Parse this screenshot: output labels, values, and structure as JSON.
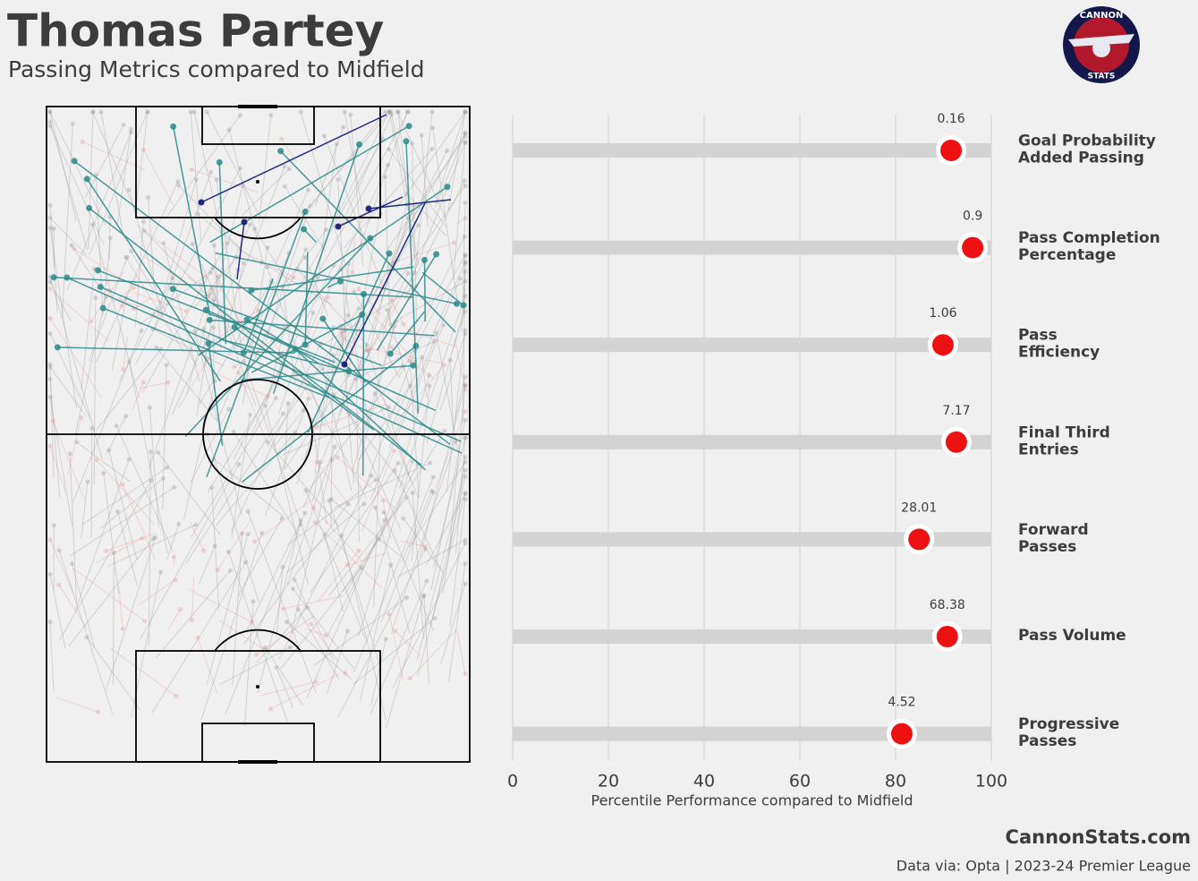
{
  "header": {
    "title": "Thomas Partey",
    "subtitle": "Passing Metrics compared to Midfield"
  },
  "logo": {
    "top": "CANNON",
    "bottom": "STATS"
  },
  "chart_data": {
    "type": "dot",
    "categories": [
      "Goal Probability\nAdded Passing",
      "Pass Completion\nPercentage",
      "Pass\nEfficiency",
      "Final Third\nEntries",
      "Forward\nPasses",
      "Pass Volume",
      "Progressive\nPasses"
    ],
    "values": [
      91.6,
      96.1,
      89.9,
      92.7,
      84.9,
      90.8,
      81.3
    ],
    "metric_values": [
      0.16,
      0.9,
      1.06,
      7.17,
      28.01,
      68.38,
      4.52
    ],
    "color": "#ee1111",
    "xlim": [
      0,
      100
    ],
    "xticks": [
      0,
      20,
      40,
      60,
      80,
      100
    ],
    "grid": true,
    "xlabel": "Percentile Performance compared to Midfield"
  },
  "footer": {
    "site": "CannonStats.com",
    "source": "Data via: Opta | 2023-24 Premier League"
  }
}
